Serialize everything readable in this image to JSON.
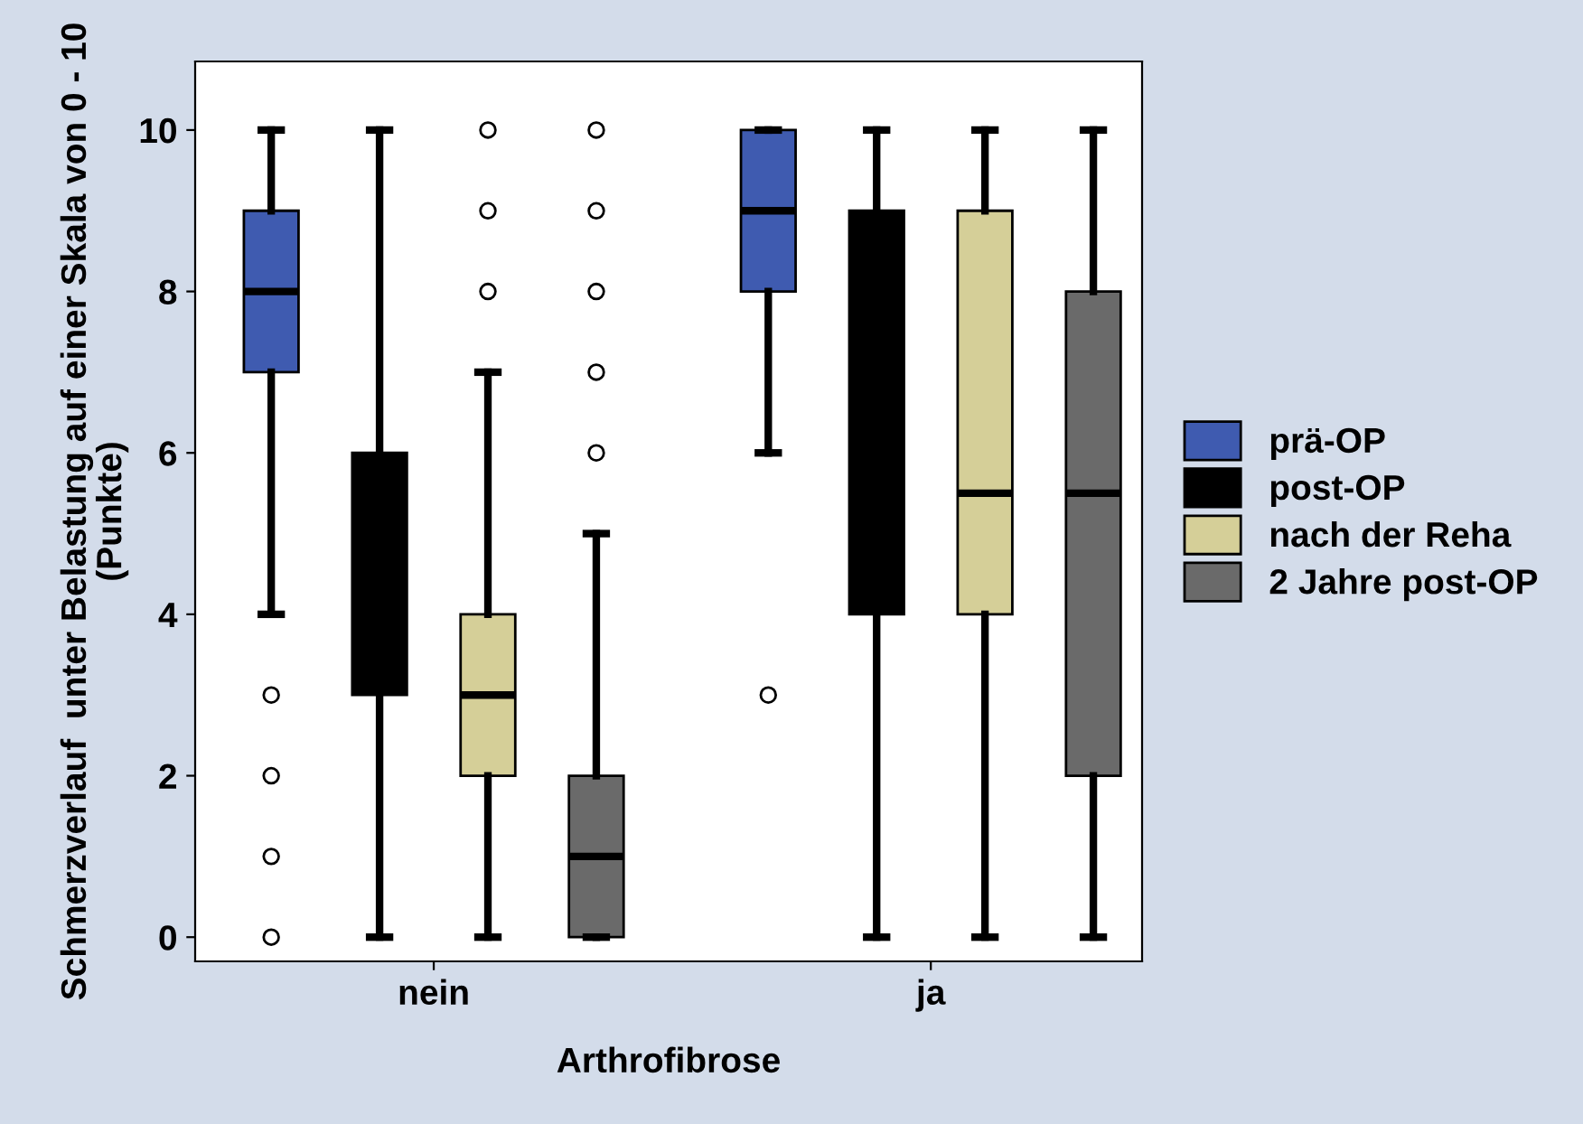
{
  "chart_data": {
    "type": "box",
    "xlabel": "Arthrofibrose",
    "ylabel": "Schmerzverlauf  unter Belastung auf einer Skala von 0 - 10 (Punkte)",
    "categories": [
      "nein",
      "ja"
    ],
    "ylim": [
      -0.3,
      10.85
    ],
    "yticks": [
      0,
      2,
      4,
      6,
      8,
      10
    ],
    "legend": "right",
    "grid": false,
    "series": [
      {
        "name": "prä-OP",
        "color": "#3f5bb0",
        "boxes": [
          {
            "low": 4,
            "q1": 7,
            "median": 8,
            "q3": 9,
            "high": 10,
            "outliers": [
              3,
              2,
              1,
              0
            ]
          },
          {
            "low": 6,
            "q1": 8,
            "median": 9,
            "q3": 10,
            "high": 10,
            "outliers": [
              3
            ]
          }
        ]
      },
      {
        "name": "post-OP",
        "color": "#000000",
        "boxes": [
          {
            "low": 0,
            "q1": 3,
            "median": 4,
            "q3": 6,
            "high": 10
          },
          {
            "low": 0,
            "q1": 4,
            "median": 6,
            "q3": 9,
            "high": 10
          }
        ]
      },
      {
        "name": "nach der Reha",
        "color": "#d5cf98",
        "boxes": [
          {
            "low": 0,
            "q1": 2,
            "median": 3,
            "q3": 4,
            "high": 7,
            "outliers": [
              8,
              9,
              10
            ]
          },
          {
            "low": 0,
            "q1": 4,
            "median": 5.5,
            "q3": 9,
            "high": 10
          }
        ]
      },
      {
        "name": "2 Jahre post-OP",
        "color": "#6a6a6a",
        "boxes": [
          {
            "low": 0,
            "q1": 0,
            "median": 1,
            "q3": 2,
            "high": 5,
            "outliers": [
              6,
              7,
              8,
              9,
              10
            ]
          },
          {
            "low": 0,
            "q1": 2,
            "median": 5.5,
            "q3": 8,
            "high": 10
          }
        ]
      }
    ]
  }
}
